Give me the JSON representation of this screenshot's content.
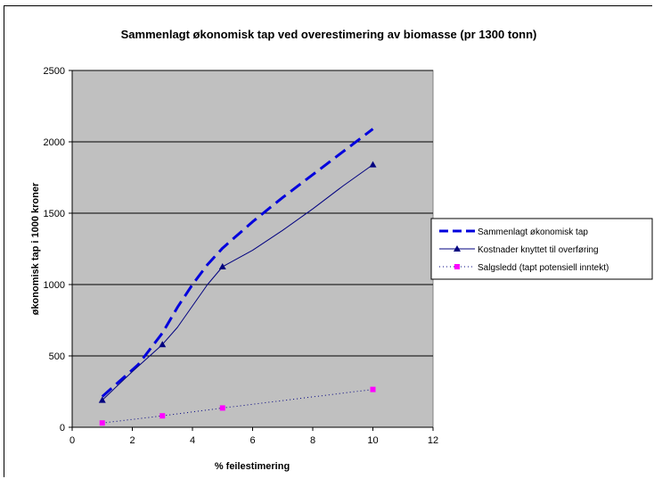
{
  "chart_data": {
    "type": "line",
    "title": "Sammenlagt økonomisk tap ved overestimering av biomasse  (pr 1300 tonn)",
    "xlabel": "% feilestimering",
    "ylabel": "økonomisk tap i 1000 kroner",
    "xlim": [
      0,
      12
    ],
    "ylim": [
      0,
      2500
    ],
    "x_ticks": [
      "0",
      "2",
      "4",
      "6",
      "8",
      "10",
      "12"
    ],
    "y_ticks": [
      "0",
      "500",
      "1000",
      "1500",
      "2000",
      "2500"
    ],
    "grid": true,
    "legend_position": "right",
    "plot_background": "#c0c0c0",
    "series": [
      {
        "name": "Sammenlagt økonomisk tap",
        "color": "#0000dd",
        "style": "dashed",
        "marker": "none",
        "points": [
          [
            1,
            215
          ],
          [
            2.2,
            440
          ],
          [
            3,
            660
          ],
          [
            3.5,
            840
          ],
          [
            4,
            1000
          ],
          [
            4.5,
            1140
          ],
          [
            5,
            1255
          ],
          [
            6,
            1440
          ],
          [
            7,
            1610
          ],
          [
            8,
            1770
          ],
          [
            9,
            1930
          ],
          [
            10,
            2090
          ]
        ]
      },
      {
        "name": "Kostnader knyttet til overføring",
        "color": "#000080",
        "style": "solid",
        "marker": "triangle",
        "marker_color": "#000080",
        "marker_points": [
          [
            1,
            190
          ],
          [
            3,
            580
          ],
          [
            5,
            1125
          ],
          [
            10,
            1840
          ]
        ],
        "points": [
          [
            1,
            190
          ],
          [
            2,
            390
          ],
          [
            3,
            580
          ],
          [
            3.5,
            700
          ],
          [
            4,
            850
          ],
          [
            4.5,
            1000
          ],
          [
            5,
            1125
          ],
          [
            6,
            1240
          ],
          [
            7,
            1380
          ],
          [
            8,
            1530
          ],
          [
            9,
            1690
          ],
          [
            10,
            1840
          ]
        ]
      },
      {
        "name": "Salgsledd (tapt potensiell inntekt)",
        "color": "#000080",
        "style": "dotted",
        "marker": "square",
        "marker_color": "#ff00ff",
        "marker_points": [
          [
            1,
            30
          ],
          [
            3,
            80
          ],
          [
            5,
            135
          ],
          [
            10,
            265
          ]
        ],
        "points": [
          [
            1,
            30
          ],
          [
            3,
            80
          ],
          [
            5,
            135
          ],
          [
            10,
            265
          ]
        ]
      }
    ]
  }
}
